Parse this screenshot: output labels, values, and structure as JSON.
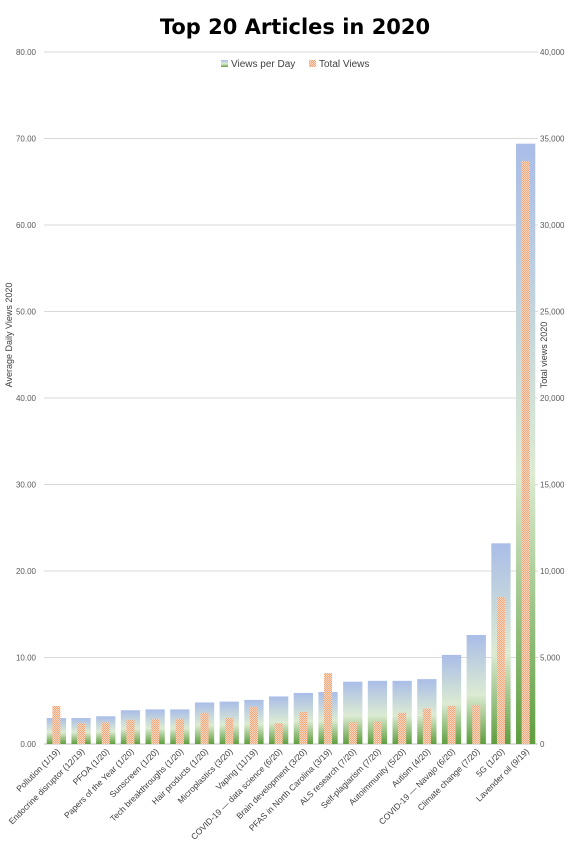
{
  "chart_data": {
    "type": "bar",
    "title": "Top 20 Articles in 2020",
    "ylabel_left": "Average Daily Views 2020",
    "ylabel_right": "Total views 2020",
    "ylim_left": [
      0,
      80
    ],
    "ylim_right": [
      0,
      40000
    ],
    "yticks_left": [
      "0.00",
      "10.00",
      "20.00",
      "30.00",
      "40.00",
      "50.00",
      "60.00",
      "70.00",
      "80.00"
    ],
    "yticks_right": [
      "0",
      "5,000",
      "10,000",
      "15,000",
      "20,000",
      "25,000",
      "30,000",
      "35,000",
      "40,000"
    ],
    "grid": true,
    "legend_position": "top",
    "categories": [
      "Pollution (1/19)",
      "Endocrine disruptor (12/19)",
      "PFOA (1/20)",
      "Papers of the Year (1/20)",
      "Sunscreen (1/20)",
      "Tech breakthroughs (1/20)",
      "Hair products (1/20)",
      "Microplastics (3/20)",
      "Vaping (11/19)",
      "COVID-19 — data science (6/20)",
      "Brain development (3/20)",
      "PFAS in North Carolina (3/19)",
      "ALS research (7/20)",
      "Self-plagiarism (7/20)",
      "Autoimmunity (5/20)",
      "Autism (4/20)",
      "COVID-19 — Navajo (6/20)",
      "Climate change (7/20)",
      "5G (1/20)",
      "Lavender oil (9/19)"
    ],
    "series": [
      {
        "name": "Views per Day",
        "axis": "left",
        "color_top": "#a9bde8",
        "color_bottom": "#5e9e3f",
        "values": [
          3.0,
          3.0,
          3.2,
          3.9,
          4.0,
          4.0,
          4.8,
          4.9,
          5.1,
          5.5,
          5.9,
          6.0,
          7.2,
          7.3,
          7.3,
          7.5,
          10.3,
          12.6,
          23.2,
          69.4
        ]
      },
      {
        "name": "Total Views",
        "axis": "right",
        "color": "#f4a67a",
        "values": [
          2200,
          1200,
          1250,
          1400,
          1450,
          1450,
          1800,
          1500,
          2150,
          1200,
          1850,
          4100,
          1250,
          1300,
          1800,
          2050,
          2200,
          2250,
          8500,
          33700
        ]
      }
    ]
  }
}
